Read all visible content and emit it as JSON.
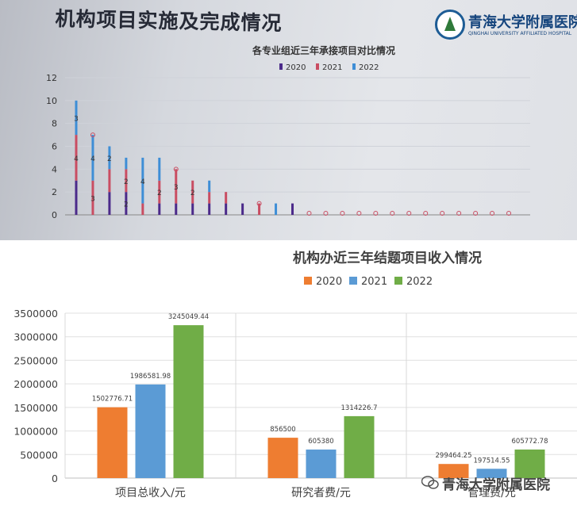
{
  "photo": {
    "slide_title": "机构项目实施及完成情况",
    "logo_text": "青海大学附属医院",
    "logo_subtext": "QINGHAI UNIVERSITY AFFILIATED HOSPITAL"
  },
  "watermark": {
    "text": "青海大学附属医院",
    "icon": "wechat-icon"
  },
  "chart_data": [
    {
      "type": "bar",
      "stacked": true,
      "title": "各专业组近三年承接项目对比情况",
      "legend_position": "top",
      "ylim": [
        0,
        12
      ],
      "yticks": [
        0,
        2,
        4,
        6,
        8,
        10,
        12
      ],
      "grid": true,
      "colors": {
        "2020": "#4b2a8a",
        "2021": "#c94d62",
        "2022": "#3e8ed6"
      },
      "categories": [
        "",
        "",
        "",
        "",
        "",
        "",
        "",
        "",
        "",
        "",
        "",
        "",
        "",
        "",
        "",
        "",
        "",
        "",
        "",
        "",
        "",
        "",
        "",
        "",
        "",
        "",
        ""
      ],
      "series": [
        {
          "name": "2020",
          "values": [
            3,
            0,
            2,
            2,
            0,
            1,
            1,
            1,
            1,
            1,
            1,
            0,
            0,
            1,
            0,
            0,
            0,
            0,
            0,
            0,
            0,
            0,
            0,
            0,
            0,
            0,
            0
          ]
        },
        {
          "name": "2021",
          "values": [
            4,
            3,
            2,
            2,
            1,
            2,
            3,
            2,
            1,
            1,
            0,
            1,
            0,
            0,
            0,
            0,
            0,
            0,
            0,
            0,
            0,
            0,
            0,
            0,
            0,
            0,
            0
          ]
        },
        {
          "name": "2022",
          "values": [
            3,
            4,
            2,
            1,
            4,
            2,
            0,
            0,
            1,
            0,
            0,
            0,
            1,
            0,
            0,
            0,
            0,
            0,
            0,
            0,
            0,
            0,
            0,
            0,
            0,
            0,
            0
          ]
        }
      ],
      "data_labels": [
        {
          "index": 0,
          "series": "2021",
          "label": "4"
        },
        {
          "index": 0,
          "series": "2022",
          "label": "3"
        },
        {
          "index": 1,
          "series": "2021",
          "label": "3"
        },
        {
          "index": 1,
          "series": "2022",
          "label": "4"
        },
        {
          "index": 2,
          "series": "2022",
          "label": "2"
        },
        {
          "index": 3,
          "series": "2020",
          "label": "2"
        },
        {
          "index": 3,
          "series": "2021",
          "label": "2"
        },
        {
          "index": 4,
          "series": "2022",
          "label": "4"
        },
        {
          "index": 5,
          "series": "2021",
          "label": "2"
        },
        {
          "index": 6,
          "series": "2021",
          "label": "3"
        },
        {
          "index": 7,
          "series": "2021",
          "label": "2"
        }
      ]
    },
    {
      "type": "bar",
      "title": "机构办近三年结题项目收入情况",
      "legend_position": "top",
      "ylim": [
        0,
        3500000
      ],
      "yticks": [
        0,
        500000,
        1000000,
        1500000,
        2000000,
        2500000,
        3000000,
        3500000
      ],
      "ytick_labels": [
        "0",
        "500000",
        "1000000",
        "1500000",
        "2000000",
        "2500000",
        "3000000",
        "3500000"
      ],
      "grid": true,
      "categories": [
        "项目总收入/元",
        "研究者费/元",
        "管理费/元"
      ],
      "series": [
        {
          "name": "2020",
          "color": "#ee7d31",
          "values": [
            1502776.71,
            856500,
            299464.25
          ],
          "labels": [
            "1502776.71",
            "856500",
            "299464.25"
          ]
        },
        {
          "name": "2021",
          "color": "#5b9bd5",
          "values": [
            1986581.98,
            605380,
            197514.55
          ],
          "labels": [
            "1986581.98",
            "605380",
            "197514.55"
          ]
        },
        {
          "name": "2022",
          "color": "#70ad47",
          "values": [
            3245049.44,
            1314226.7,
            605772.78
          ],
          "labels": [
            "3245049.44",
            "1314226.7",
            "605772.78"
          ]
        }
      ]
    }
  ]
}
